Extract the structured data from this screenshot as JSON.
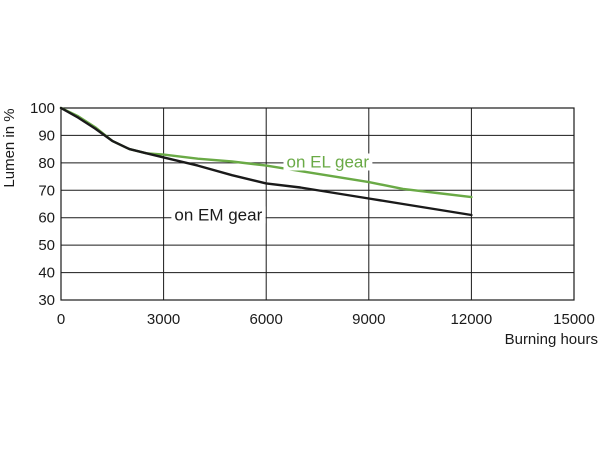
{
  "chart_data": {
    "type": "line",
    "title": "",
    "xlabel": "Burning hours",
    "ylabel": "Lumen in %",
    "xlim": [
      0,
      15000
    ],
    "ylim": [
      30,
      100
    ],
    "xticks": [
      0,
      3000,
      6000,
      9000,
      12000,
      15000
    ],
    "yticks": [
      30,
      40,
      50,
      60,
      70,
      80,
      90,
      100
    ],
    "xtick_labels": [
      "0",
      "3000",
      "6000",
      "9000",
      "12000",
      "15000"
    ],
    "ytick_labels": [
      "30",
      "40",
      "50",
      "60",
      "70",
      "80",
      "90",
      "100"
    ],
    "grid": true,
    "series": [
      {
        "name": "on EL gear",
        "color": "#6aaa46",
        "x": [
          0,
          500,
          1000,
          1500,
          2000,
          2500,
          3000,
          4000,
          5000,
          6000,
          7000,
          8000,
          9000,
          10000,
          11000,
          12000
        ],
        "y": [
          100,
          97,
          93,
          88,
          85,
          83.5,
          83,
          81.5,
          80.5,
          79,
          77,
          75,
          73,
          70.5,
          69,
          67.5
        ]
      },
      {
        "name": "on EM gear",
        "color": "#1a1a1a",
        "x": [
          0,
          500,
          1000,
          1500,
          2000,
          2500,
          3000,
          4000,
          5000,
          6000,
          7000,
          8000,
          9000,
          10000,
          11000,
          12000
        ],
        "y": [
          100,
          96.5,
          92.5,
          88,
          85,
          83.5,
          82,
          79,
          75.5,
          72.5,
          71,
          69,
          67,
          65,
          63,
          61
        ]
      }
    ]
  }
}
